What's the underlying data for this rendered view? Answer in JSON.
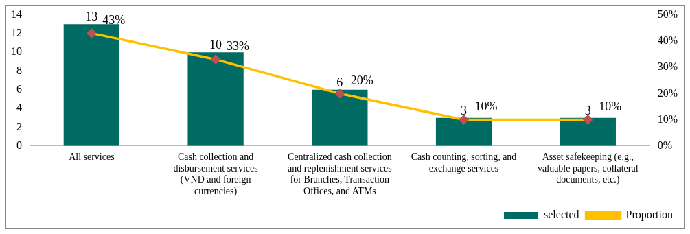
{
  "chart_data": {
    "type": "bar",
    "categories": [
      "All services",
      "Cash collection and disbursement services (VND and foreign currencies)",
      "Centralized cash collection and replenishment services for Branches, Transaction Offices, and ATMs",
      "Cash counting, sorting, and exchange services",
      "Asset safekeeping (e.g., valuable papers, collateral documents, etc.)"
    ],
    "series": [
      {
        "name": "selected",
        "color": "#006b63",
        "values": [
          13,
          10,
          6,
          3,
          3
        ],
        "value_labels": [
          "13",
          "10",
          "6",
          "3",
          "3"
        ]
      },
      {
        "name": "Proportion",
        "type": "line",
        "axis": "y2",
        "color": "#ffc000",
        "marker": "diamond",
        "values": [
          43,
          33,
          20,
          10,
          10
        ],
        "value_labels": [
          "43%",
          "33%",
          "20%",
          "10%",
          "10%"
        ]
      }
    ],
    "ylim": [
      0,
      14
    ],
    "yticks": [
      0,
      2,
      4,
      6,
      8,
      10,
      12,
      14
    ],
    "y2lim": [
      0,
      50
    ],
    "y2ticks": [
      {
        "value": 0,
        "label": "0%"
      },
      {
        "value": 10,
        "label": "10%"
      },
      {
        "value": 20,
        "label": "20%"
      },
      {
        "value": 30,
        "label": "30%"
      },
      {
        "value": 40,
        "label": "40%"
      },
      {
        "value": 50,
        "label": "50%"
      }
    ],
    "grid": false,
    "legend": "bottom right"
  }
}
